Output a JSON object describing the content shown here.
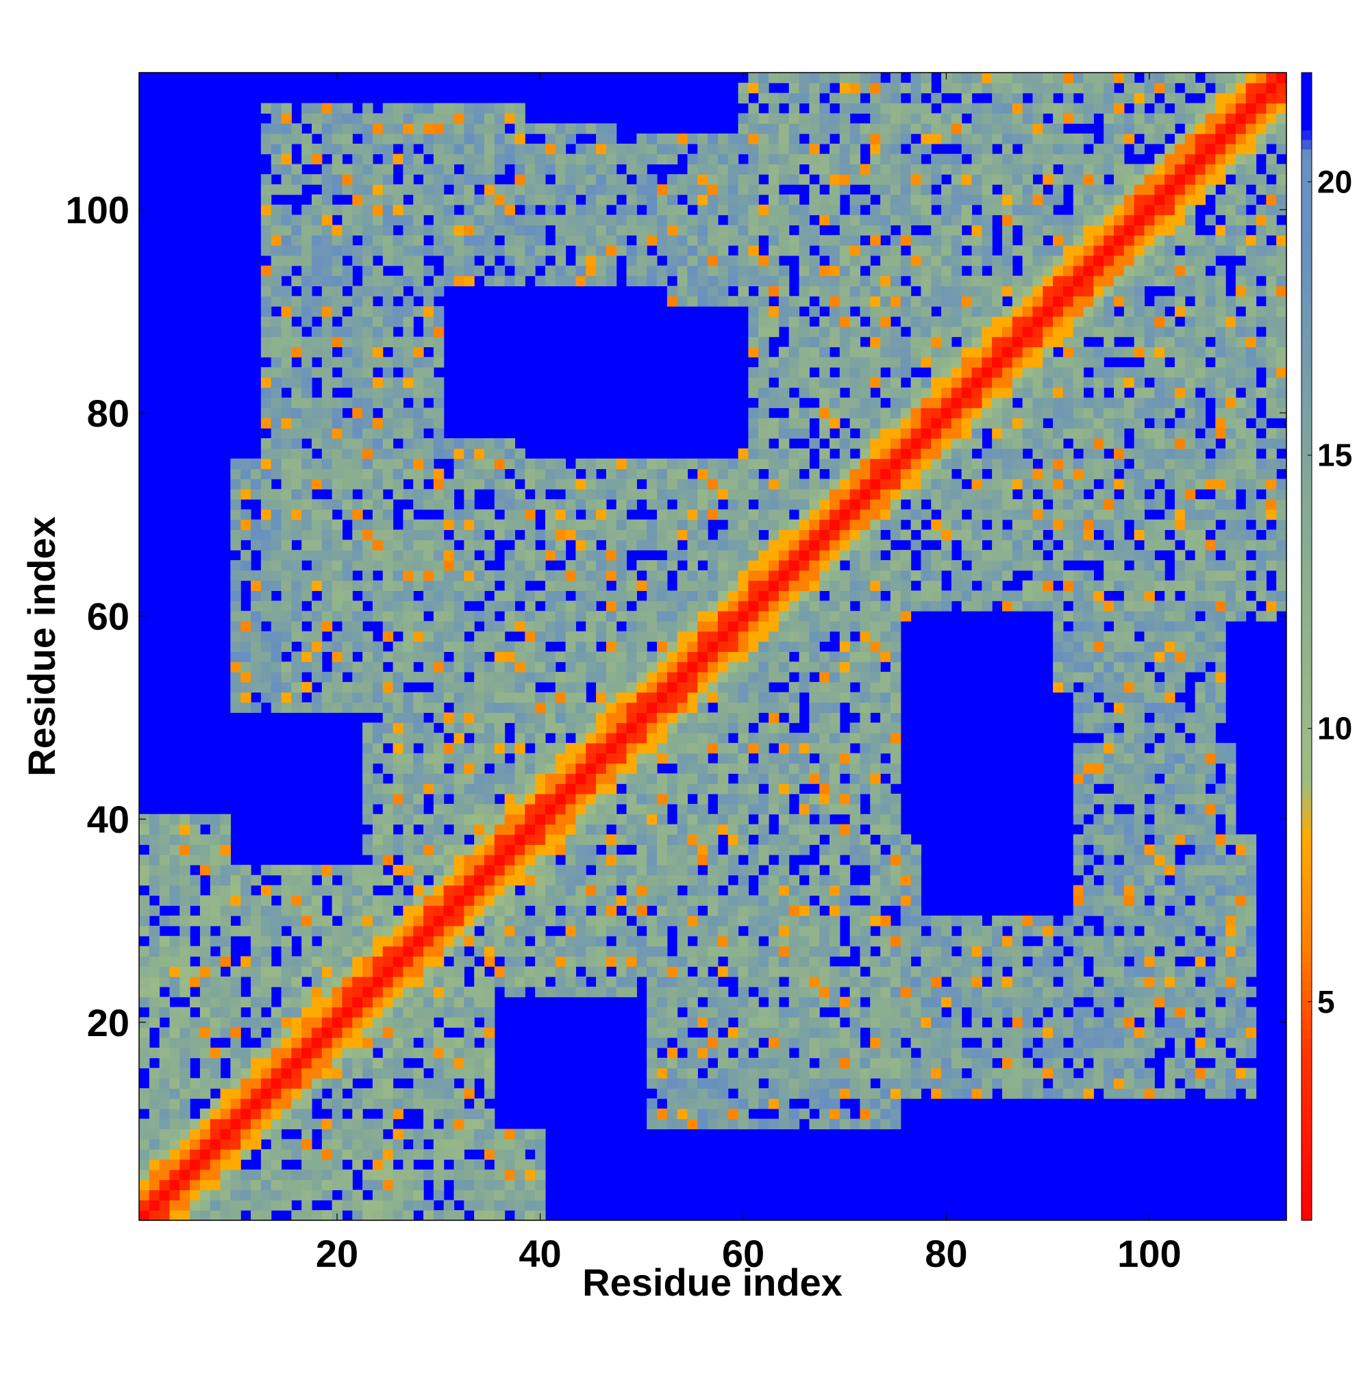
{
  "chart_data": {
    "type": "heatmap",
    "title": "",
    "xlabel": "Residue index",
    "ylabel": "Residue index",
    "x_range": [
      1,
      113
    ],
    "y_range": [
      1,
      113
    ],
    "xticks": [
      20,
      40,
      60,
      80,
      100
    ],
    "yticks": [
      20,
      40,
      60,
      80,
      100
    ],
    "colorbar": {
      "range": [
        1,
        22
      ],
      "ticks": [
        5,
        10,
        15,
        20
      ],
      "position": "right",
      "stops": [
        {
          "v": 1,
          "color": "#ff0000"
        },
        {
          "v": 4,
          "color": "#ff3300"
        },
        {
          "v": 6,
          "color": "#ff8000"
        },
        {
          "v": 8,
          "color": "#ffaa00"
        },
        {
          "v": 9,
          "color": "#9ebd83"
        },
        {
          "v": 14,
          "color": "#86aa95"
        },
        {
          "v": 19,
          "color": "#6890c0"
        },
        {
          "v": 20.5,
          "color": "#6890c0"
        },
        {
          "v": 21,
          "color": "#0000ff"
        }
      ]
    },
    "value_rule": "symmetric distance map; diagonal band 0-1 ~1-3, |i-j| 2-4 ~5-8, contact domains ~9-19, background ~21",
    "diagonal_band": {
      "width": 4,
      "values": [
        1.5,
        3.5,
        6,
        8,
        10
      ]
    },
    "domains": [
      {
        "x": [
          1,
          40
        ],
        "y": [
          1,
          40
        ],
        "level": 14
      },
      {
        "x": [
          15,
          75
        ],
        "y": [
          15,
          75
        ],
        "level": 15
      },
      {
        "x": [
          60,
          113
        ],
        "y": [
          60,
          113
        ],
        "level": 15
      },
      {
        "x": [
          40,
          75
        ],
        "y": [
          10,
          35
        ],
        "level": 17
      },
      {
        "x": [
          84,
          108
        ],
        "y": [
          15,
          48
        ],
        "level": 16
      },
      {
        "x": [
          13,
          38
        ],
        "y": [
          75,
          110
        ],
        "level": 16
      },
      {
        "x": [
          47,
          73
        ],
        "y": [
          78,
          107
        ],
        "level": 17
      },
      {
        "x": [
          85,
          106
        ],
        "y": [
          52,
          80
        ],
        "level": 16
      },
      {
        "x": [
          90,
          113
        ],
        "y": [
          95,
          113
        ],
        "level": 15
      }
    ],
    "holes": [
      {
        "x": [
          77,
          90
        ],
        "y": [
          38,
          60
        ]
      },
      {
        "x": [
          31,
          52
        ],
        "y": [
          78,
          92
        ]
      },
      {
        "x": [
          36,
          50
        ],
        "y": [
          10,
          22
        ]
      },
      {
        "x": [
          1,
          12
        ],
        "y": [
          78,
          113
        ]
      },
      {
        "x": [
          100,
          113
        ],
        "y": [
          1,
          12
        ]
      }
    ]
  }
}
